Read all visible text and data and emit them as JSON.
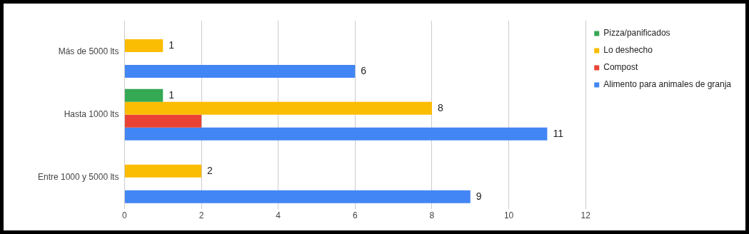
{
  "chart_data": {
    "type": "bar",
    "orientation": "horizontal",
    "categories": [
      "Más de 5000 lts",
      "Hasta 1000 lts",
      "Entre 1000 y 5000 lts"
    ],
    "series": [
      {
        "name": "Pizza/panificados",
        "color": "#34a853",
        "values": [
          null,
          1,
          null
        ],
        "value_labels": [
          null,
          "1",
          null
        ]
      },
      {
        "name": "Lo deshecho",
        "color": "#fbbc04",
        "values": [
          1,
          8,
          2
        ],
        "value_labels": [
          "1",
          "8",
          "2"
        ]
      },
      {
        "name": "Compost",
        "color": "#ea4335",
        "values": [
          null,
          2,
          null
        ],
        "value_labels": [
          null,
          null,
          null
        ]
      },
      {
        "name": "Alimento para animales de granja",
        "color": "#4285f4",
        "values": [
          6,
          11,
          9
        ],
        "value_labels": [
          "6",
          "11",
          "9"
        ]
      }
    ],
    "xlim": [
      0,
      12
    ],
    "xticks": [
      0,
      2,
      4,
      6,
      8,
      10,
      12
    ],
    "grid": "x",
    "legend": "top right"
  }
}
